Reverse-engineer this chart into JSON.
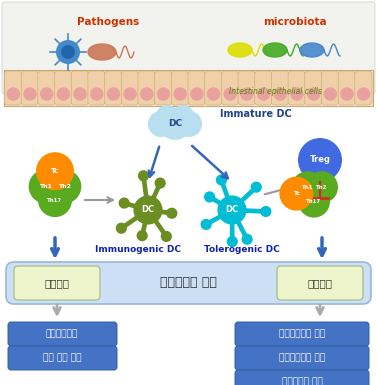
{
  "background_color": "#ffffff",
  "epithelial_bar_color": "#f5e8cc",
  "epithelial_cell_color": "#f0d0a8",
  "epithelial_dot_color": "#e8a0a0",
  "pathogens_text": "Pathogens",
  "microbiota_text": "microbiota",
  "epithelial_text": "Intestinal epithelial cells",
  "immature_dc_text": "Immature DC",
  "immunogenic_dc_text": "Immunogenic DC",
  "tolerogenic_dc_text": "Tolerogenic DC",
  "box_main_text": "점막항상성 조절",
  "box_left_text": "점막면역",
  "box_right_text": "점막관용",
  "bottom_left_boxes": [
    "점막백신개발",
    "장내 감염 치료"
  ],
  "bottom_right_boxes": [
    "자가면역질환 치료",
    "이식거부반응 완화",
    "점막애러지 스단"
  ],
  "bottom_box_color": "#4472c4",
  "bottom_box_text_color": "#ffffff",
  "arrow_color_blue": "#3366bb",
  "arrow_color_gray": "#999999",
  "tc_color": "#ff8c00",
  "th_color": "#5aaa20",
  "treg_circle_color": "#4169e1",
  "immunogenic_dc_color": "#6b8e23",
  "tolerogenic_dc_color": "#00bcd4",
  "cloud_color": "#b8dff0",
  "top_bg_color": "#f2f2ee",
  "main_box_color": "#cce0f5",
  "main_box_border": "#9ab8d8",
  "sub_box_color": "#eef5cc",
  "sub_box_border": "#aabb88"
}
